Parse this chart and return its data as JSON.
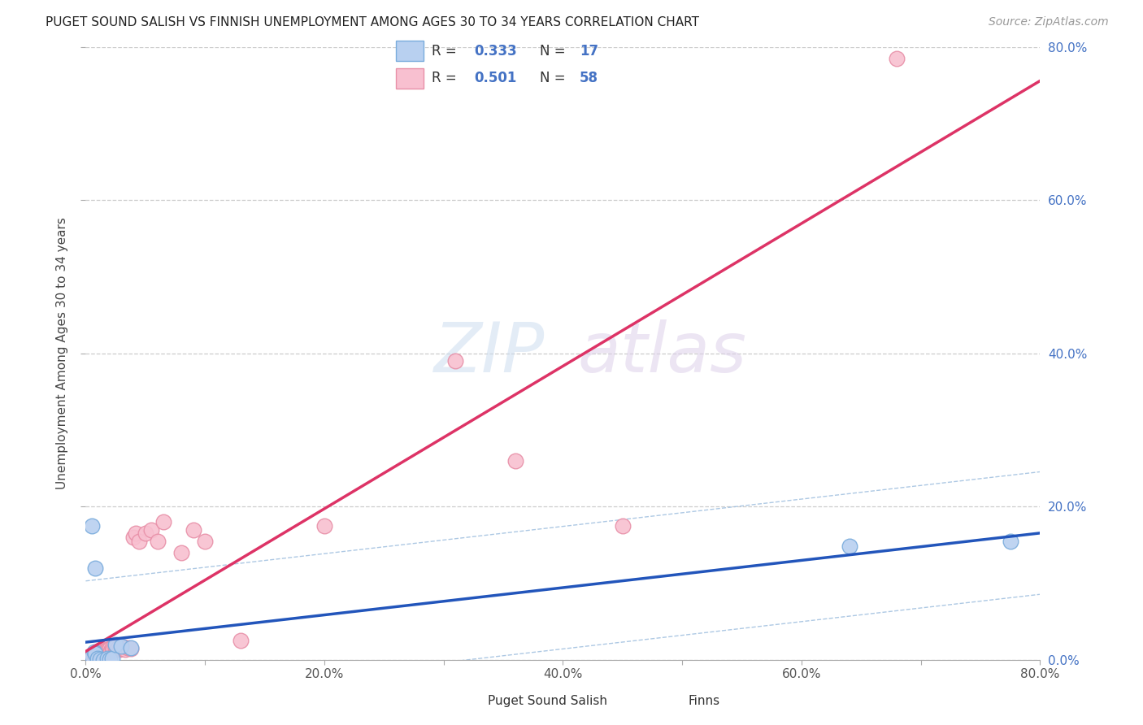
{
  "title": "PUGET SOUND SALISH VS FINNISH UNEMPLOYMENT AMONG AGES 30 TO 34 YEARS CORRELATION CHART",
  "source": "Source: ZipAtlas.com",
  "ylabel": "Unemployment Among Ages 30 to 34 years",
  "xlim": [
    0.0,
    0.8
  ],
  "ylim": [
    0.0,
    0.8
  ],
  "xticks": [
    0.0,
    0.1,
    0.2,
    0.3,
    0.4,
    0.5,
    0.6,
    0.7,
    0.8
  ],
  "yticks": [
    0.0,
    0.2,
    0.4,
    0.6,
    0.8
  ],
  "xtick_labels": [
    "0.0%",
    "",
    "20.0%",
    "",
    "40.0%",
    "",
    "60.0%",
    "",
    "80.0%"
  ],
  "right_ytick_labels": [
    "0.0%",
    "20.0%",
    "40.0%",
    "60.0%",
    "80.0%"
  ],
  "blue_scatter": [
    [
      0.005,
      0.005
    ],
    [
      0.007,
      0.01
    ],
    [
      0.008,
      0.008
    ],
    [
      0.01,
      0.0
    ],
    [
      0.01,
      0.002
    ],
    [
      0.012,
      0.001
    ],
    [
      0.015,
      0.0
    ],
    [
      0.018,
      0.002
    ],
    [
      0.02,
      0.001
    ],
    [
      0.022,
      0.002
    ],
    [
      0.025,
      0.02
    ],
    [
      0.03,
      0.018
    ],
    [
      0.038,
      0.016
    ],
    [
      0.005,
      0.175
    ],
    [
      0.008,
      0.12
    ],
    [
      0.64,
      0.148
    ],
    [
      0.775,
      0.155
    ]
  ],
  "pink_scatter": [
    [
      0.003,
      0.002
    ],
    [
      0.004,
      0.004
    ],
    [
      0.005,
      0.006
    ],
    [
      0.005,
      0.001
    ],
    [
      0.006,
      0.003
    ],
    [
      0.007,
      0.005
    ],
    [
      0.007,
      0.008
    ],
    [
      0.008,
      0.004
    ],
    [
      0.008,
      0.007
    ],
    [
      0.009,
      0.006
    ],
    [
      0.01,
      0.003
    ],
    [
      0.01,
      0.008
    ],
    [
      0.01,
      0.01
    ],
    [
      0.011,
      0.007
    ],
    [
      0.012,
      0.009
    ],
    [
      0.012,
      0.012
    ],
    [
      0.013,
      0.008
    ],
    [
      0.013,
      0.011
    ],
    [
      0.014,
      0.01
    ],
    [
      0.015,
      0.009
    ],
    [
      0.015,
      0.013
    ],
    [
      0.016,
      0.011
    ],
    [
      0.017,
      0.012
    ],
    [
      0.018,
      0.01
    ],
    [
      0.018,
      0.014
    ],
    [
      0.019,
      0.013
    ],
    [
      0.02,
      0.012
    ],
    [
      0.02,
      0.015
    ],
    [
      0.021,
      0.011
    ],
    [
      0.022,
      0.014
    ],
    [
      0.022,
      0.016
    ],
    [
      0.023,
      0.013
    ],
    [
      0.025,
      0.015
    ],
    [
      0.025,
      0.017
    ],
    [
      0.026,
      0.014
    ],
    [
      0.027,
      0.016
    ],
    [
      0.028,
      0.013
    ],
    [
      0.03,
      0.015
    ],
    [
      0.032,
      0.017
    ],
    [
      0.033,
      0.014
    ],
    [
      0.035,
      0.016
    ],
    [
      0.038,
      0.015
    ],
    [
      0.04,
      0.16
    ],
    [
      0.042,
      0.165
    ],
    [
      0.045,
      0.155
    ],
    [
      0.05,
      0.165
    ],
    [
      0.055,
      0.17
    ],
    [
      0.06,
      0.155
    ],
    [
      0.065,
      0.18
    ],
    [
      0.08,
      0.14
    ],
    [
      0.09,
      0.17
    ],
    [
      0.1,
      0.155
    ],
    [
      0.13,
      0.025
    ],
    [
      0.2,
      0.175
    ],
    [
      0.31,
      0.39
    ],
    [
      0.36,
      0.26
    ],
    [
      0.45,
      0.175
    ],
    [
      0.68,
      0.785
    ]
  ],
  "blue_R": 0.333,
  "blue_N": 17,
  "pink_R": 0.501,
  "pink_N": 58,
  "blue_scatter_face": "#b8d0f0",
  "blue_scatter_edge": "#7aacdc",
  "pink_scatter_face": "#f8c0d0",
  "pink_scatter_edge": "#e890a8",
  "blue_line_color": "#2255bb",
  "pink_line_color": "#dd3366",
  "blue_dash_color": "#99bbdd",
  "grid_color": "#cccccc",
  "bg_color": "#ffffff",
  "title_color": "#222222",
  "source_color": "#999999",
  "ylabel_color": "#444444",
  "tick_color_x": "#555555",
  "tick_color_y": "#4472c4",
  "legend_text_color": "#333333",
  "legend_value_color": "#4472c4",
  "watermark_zip_color": "#ccddf0",
  "watermark_atlas_color": "#ddd0ea"
}
